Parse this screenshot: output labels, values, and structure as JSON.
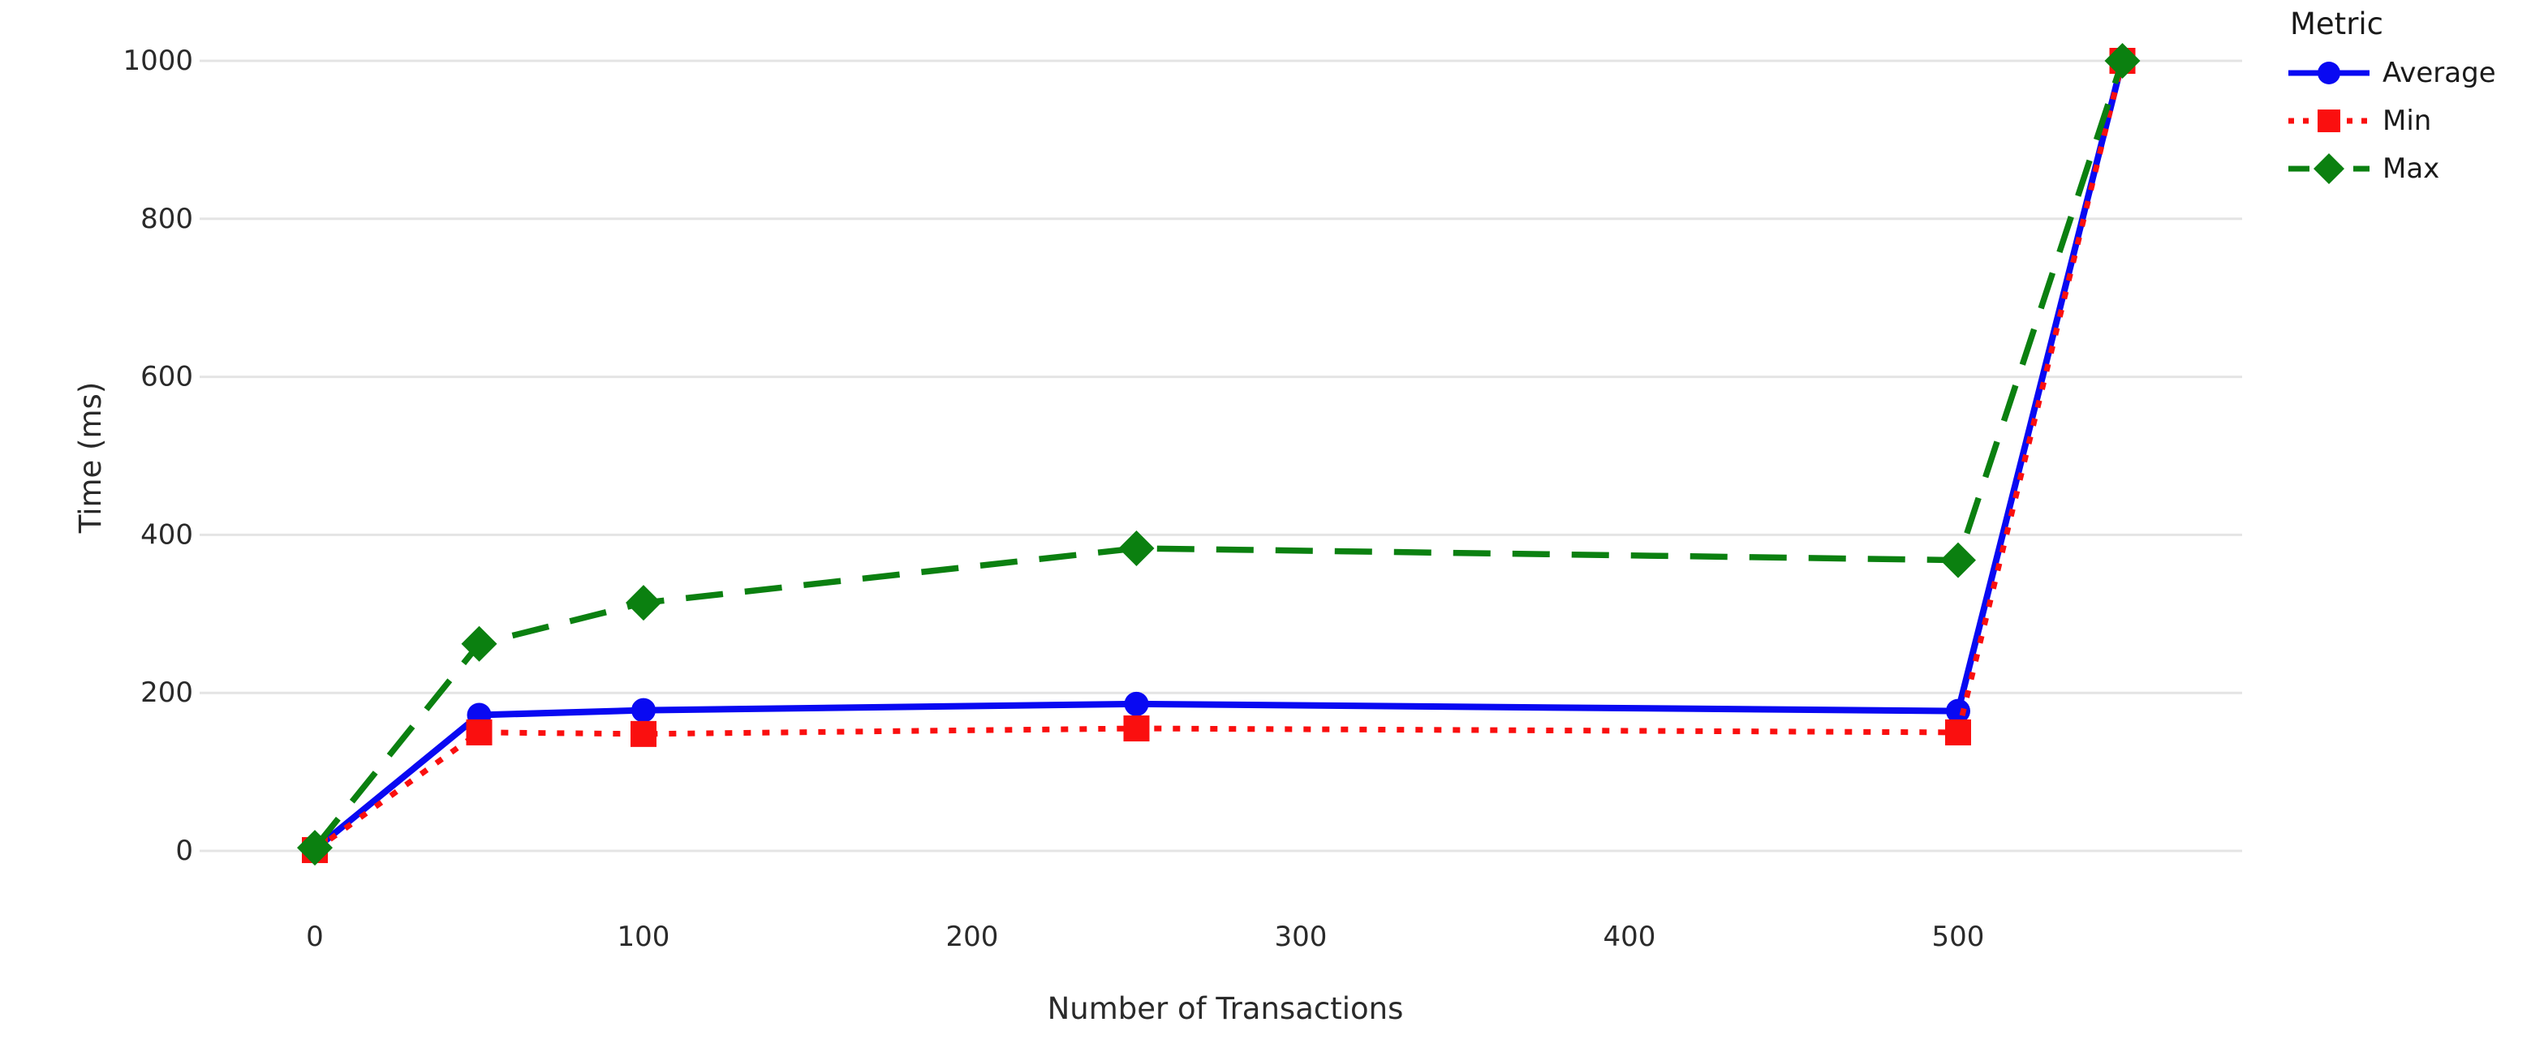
{
  "chart_data": {
    "type": "line",
    "xlabel": "Number of Transactions",
    "ylabel": "Time (ms)",
    "x": [
      0,
      50,
      100,
      250,
      500,
      550
    ],
    "series": [
      {
        "name": "Average",
        "values": [
          2,
          172,
          178,
          186,
          177,
          1000
        ],
        "color": "#0909f2",
        "line_style": "solid",
        "marker": "circle"
      },
      {
        "name": "Min",
        "values": [
          1,
          150,
          148,
          155,
          150,
          1000
        ],
        "color": "#fa0f0f",
        "line_style": "dotted",
        "marker": "square"
      },
      {
        "name": "Max",
        "values": [
          4,
          262,
          314,
          383,
          368,
          1000
        ],
        "color": "#0b8010",
        "line_style": "dashed",
        "marker": "diamond"
      }
    ],
    "xticks": [
      0,
      100,
      200,
      300,
      400,
      500
    ],
    "yticks": [
      0,
      200,
      400,
      600,
      800,
      1000
    ],
    "xlim": [
      -22,
      586
    ],
    "ylim": [
      -52,
      1036
    ],
    "grid": "horizontal",
    "legend_title": "Metric",
    "legend_position": "top-right-outside"
  },
  "colors": {
    "background": "#ffffff",
    "grid": "#e4e4e4",
    "tick_text": "#2a2a2a",
    "label_text": "#1a1a1a"
  }
}
